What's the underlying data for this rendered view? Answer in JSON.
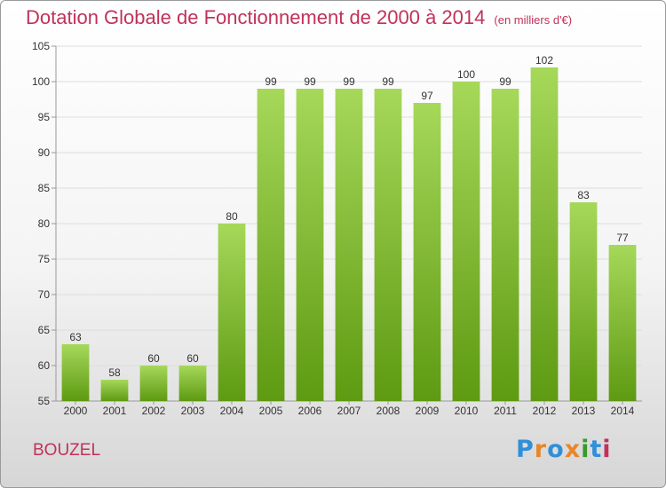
{
  "title": "Dotation Globale de Fonctionnement de 2000 à 2014",
  "unit_label": "(en milliers d'€)",
  "commune": "BOUZEL",
  "logo": {
    "text": "Proxiti",
    "colors": [
      "#2f8fd8",
      "#e8862a",
      "#2f8fd8",
      "#e8862a",
      "#3a9a2c",
      "#2f8fd8",
      "#c0325a"
    ]
  },
  "colors": {
    "title": "#c0325a",
    "bar_top": "#a6d85a",
    "bar_bottom": "#5e9a12",
    "grid": "#dddddd",
    "axis": "#999999"
  },
  "chart_data": {
    "type": "bar",
    "title": "Dotation Globale de Fonctionnement de 2000 à 2014",
    "xlabel": "",
    "ylabel": "",
    "categories": [
      "2000",
      "2001",
      "2002",
      "2003",
      "2004",
      "2005",
      "2006",
      "2007",
      "2008",
      "2009",
      "2010",
      "2011",
      "2012",
      "2013",
      "2014"
    ],
    "values": [
      63,
      58,
      60,
      60,
      80,
      99,
      99,
      99,
      99,
      97,
      100,
      99,
      102,
      83,
      77
    ],
    "ylim": [
      55,
      105
    ],
    "yticks": [
      55,
      60,
      65,
      70,
      75,
      80,
      85,
      90,
      95,
      100,
      105
    ],
    "grid": true,
    "legend": "none"
  }
}
